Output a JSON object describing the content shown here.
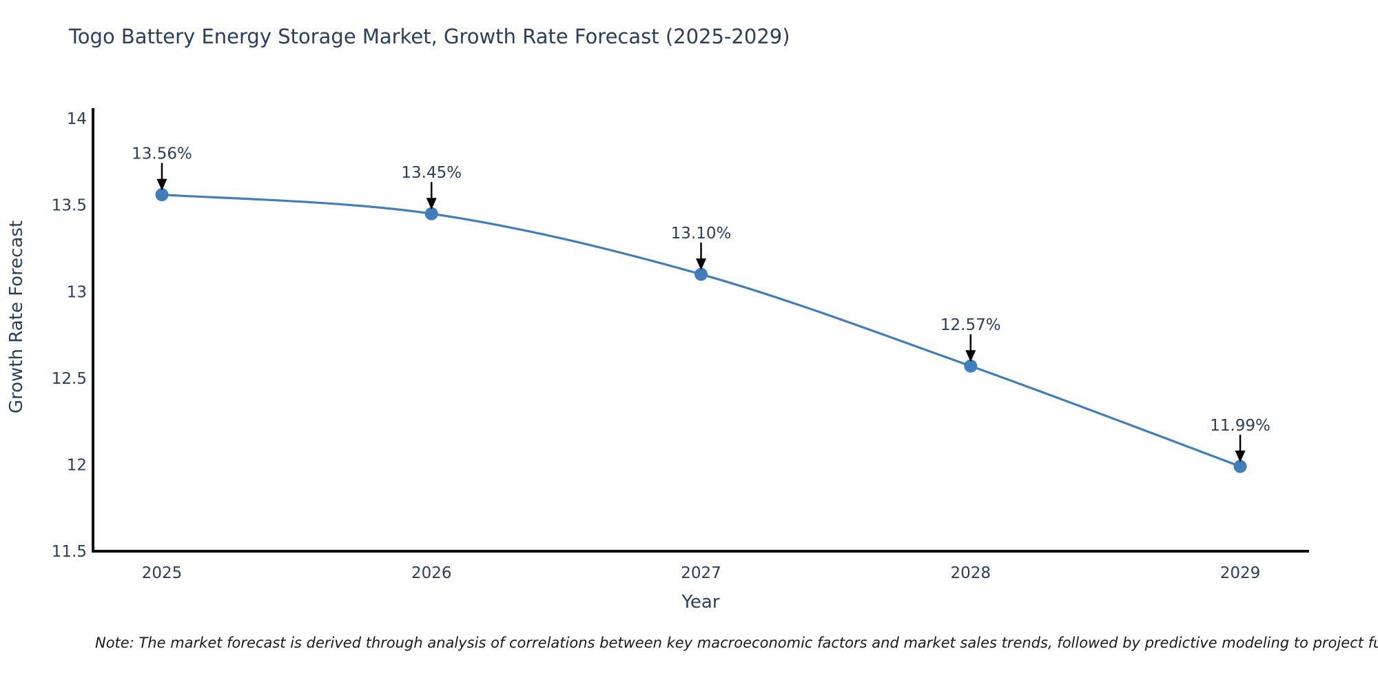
{
  "title": "Togo Battery Energy Storage Market, Growth Rate Forecast (2025-2029)",
  "note": "Note: The market forecast is derived through analysis of correlations between key macroeconomic factors and market sales trends, followed by predictive modeling to project future sal",
  "chart_data": {
    "type": "line",
    "title": "Togo Battery Energy Storage Market, Growth Rate Forecast (2025-2029)",
    "xlabel": "Year",
    "ylabel": "Growth Rate Forecast",
    "x": [
      2025,
      2026,
      2027,
      2028,
      2029
    ],
    "y": [
      13.56,
      13.45,
      13.1,
      12.57,
      11.99
    ],
    "point_labels": [
      "13.56%",
      "13.45%",
      "13.10%",
      "12.57%",
      "11.99%"
    ],
    "yticks": [
      11.5,
      12,
      12.5,
      13,
      13.5,
      14
    ],
    "ylim": [
      11.5,
      14.06
    ],
    "line_shape": "spline",
    "grid": false,
    "legend": "none",
    "colors": {
      "line": "#3e7ebe",
      "marker": "#3e7ebe",
      "axis": "#0f0f0f",
      "text": "#2a3f5f",
      "arrow": "#000000"
    }
  }
}
